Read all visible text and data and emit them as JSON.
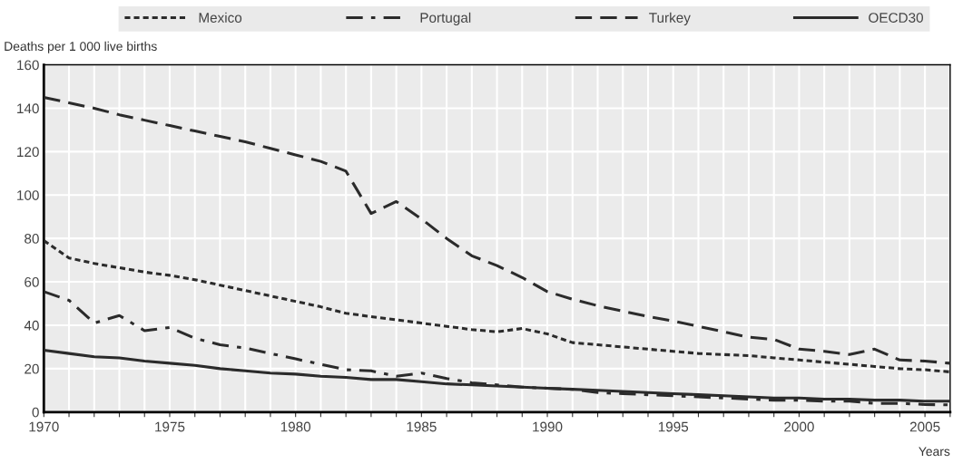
{
  "chart_data": {
    "type": "line",
    "xlabel": "Years",
    "ylabel": "Deaths per 1 000 live births",
    "x": [
      1970,
      1971,
      1972,
      1973,
      1974,
      1975,
      1976,
      1977,
      1978,
      1979,
      1980,
      1981,
      1982,
      1983,
      1984,
      1985,
      1986,
      1987,
      1988,
      1989,
      1990,
      1991,
      1992,
      1993,
      1994,
      1995,
      1996,
      1997,
      1998,
      1999,
      2000,
      2001,
      2002,
      2003,
      2004,
      2005,
      2006
    ],
    "series": [
      {
        "name": "Mexico",
        "color": "#2b2b2b",
        "line_style": "dotted",
        "values": [
          79,
          71,
          68.5,
          66.5,
          64.5,
          63,
          61,
          58.5,
          56,
          53.5,
          51,
          48.5,
          45.5,
          44,
          42.5,
          41,
          39.5,
          38,
          37,
          38.5,
          36,
          32,
          31,
          30,
          29,
          28,
          27,
          26.5,
          26,
          25,
          24,
          23,
          22,
          21,
          20,
          19.5,
          18.5
        ]
      },
      {
        "name": "Portugal",
        "color": "#2b2b2b",
        "line_style": "dashdot",
        "values": [
          55.5,
          51.5,
          41,
          44.5,
          37.5,
          39,
          34,
          31,
          29.5,
          27,
          24.5,
          22,
          19.5,
          19,
          16.5,
          18,
          15.5,
          13.5,
          12.5,
          11.5,
          11,
          10.5,
          9,
          8.5,
          8,
          7.5,
          7,
          6.5,
          6,
          5.5,
          5.5,
          5,
          5,
          4,
          4,
          3.5,
          3.3
        ]
      },
      {
        "name": "Turkey",
        "color": "#2b2b2b",
        "line_style": "dashed",
        "values": [
          145,
          142.5,
          140,
          137,
          134.5,
          132,
          129.5,
          127,
          124.5,
          121.5,
          118.5,
          115.5,
          111,
          91.5,
          97,
          89,
          80,
          72,
          67.5,
          62,
          55.5,
          52,
          49,
          46.5,
          44,
          42,
          39.5,
          37,
          34.5,
          33.5,
          29,
          28,
          26.5,
          29,
          24,
          23.5,
          22.5
        ]
      },
      {
        "name": "OECD30",
        "color": "#2b2b2b",
        "line_style": "solid",
        "values": [
          28.5,
          27,
          25.5,
          25,
          23.5,
          22.5,
          21.5,
          20,
          19,
          18,
          17.5,
          16.5,
          16,
          15,
          15,
          14,
          13,
          12.5,
          12,
          11.5,
          11,
          10.5,
          10,
          9.5,
          9,
          8.5,
          8,
          7.5,
          7,
          6.5,
          6.5,
          6,
          6,
          5.5,
          5.5,
          5,
          5
        ]
      }
    ],
    "xlim": [
      1970,
      2006
    ],
    "xticks": [
      1970,
      {
        "value": 1971,
        "label": null
      },
      {
        "value": 1972,
        "label": null
      },
      {
        "value": 1973,
        "label": null
      },
      {
        "value": 1974,
        "label": null
      },
      1975,
      {
        "value": 1976,
        "label": null
      },
      {
        "value": 1977,
        "label": null
      },
      {
        "value": 1978,
        "label": null
      },
      {
        "value": 1979,
        "label": null
      },
      1980,
      {
        "value": 1981,
        "label": null
      },
      {
        "value": 1982,
        "label": null
      },
      {
        "value": 1983,
        "label": null
      },
      {
        "value": 1984,
        "label": null
      },
      1985,
      {
        "value": 1986,
        "label": null
      },
      {
        "value": 1987,
        "label": null
      },
      {
        "value": 1988,
        "label": null
      },
      {
        "value": 1989,
        "label": null
      },
      1990,
      {
        "value": 1991,
        "label": null
      },
      {
        "value": 1992,
        "label": null
      },
      {
        "value": 1993,
        "label": null
      },
      {
        "value": 1994,
        "label": null
      },
      1995,
      {
        "value": 1996,
        "label": null
      },
      {
        "value": 1997,
        "label": null
      },
      {
        "value": 1998,
        "label": null
      },
      {
        "value": 1999,
        "label": null
      },
      2000,
      {
        "value": 2001,
        "label": null
      },
      {
        "value": 2002,
        "label": null
      },
      {
        "value": 2003,
        "label": null
      },
      {
        "value": 2004,
        "label": null
      },
      2005,
      {
        "value": 2006,
        "label": null
      }
    ],
    "ylim": [
      0,
      160
    ],
    "yticks": [
      0,
      20,
      40,
      60,
      80,
      100,
      120,
      140,
      160
    ],
    "grid": true,
    "legend": "top"
  }
}
